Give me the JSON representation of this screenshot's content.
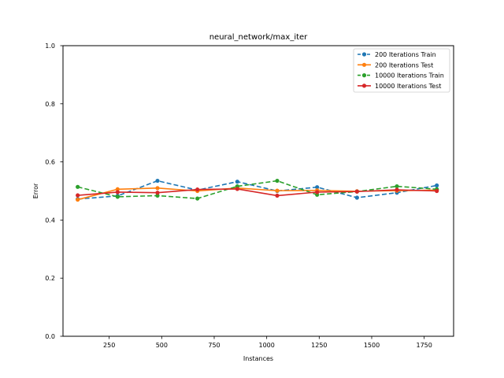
{
  "chart_data": {
    "type": "line",
    "title": "neural_network/max_iter",
    "xlabel": "Instances",
    "ylabel": "Error",
    "xlim": [
      30,
      1890
    ],
    "ylim": [
      0.0,
      1.0
    ],
    "xticks": [
      250,
      500,
      750,
      1000,
      1250,
      1500,
      1750
    ],
    "yticks": [
      0.0,
      0.2,
      0.4,
      0.6,
      0.8,
      1.0
    ],
    "xtick_labels": [
      "250",
      "500",
      "750",
      "1000",
      "1250",
      "1500",
      "1750"
    ],
    "ytick_labels": [
      "0.0",
      "0.2",
      "0.4",
      "0.6",
      "0.8",
      "1.0"
    ],
    "grid": false,
    "legend_position": "top-right",
    "x": [
      100,
      290,
      480,
      670,
      860,
      1050,
      1240,
      1430,
      1620,
      1810
    ],
    "series": [
      {
        "name": "200 Iterations Train",
        "color": "#1f77b4",
        "linestyle": "dashed",
        "values": [
          0.472,
          0.483,
          0.535,
          0.503,
          0.532,
          0.5,
          0.513,
          0.477,
          0.494,
          0.519
        ]
      },
      {
        "name": "200 Iterations Test",
        "color": "#ff7f0e",
        "linestyle": "solid",
        "values": [
          0.47,
          0.506,
          0.51,
          0.5,
          0.51,
          0.501,
          0.502,
          0.499,
          0.501,
          0.503
        ]
      },
      {
        "name": "10000 Iterations Train",
        "color": "#2ca02c",
        "linestyle": "dashed",
        "values": [
          0.514,
          0.48,
          0.484,
          0.474,
          0.516,
          0.535,
          0.487,
          0.498,
          0.516,
          0.506
        ]
      },
      {
        "name": "10000 Iterations Test",
        "color": "#d62728",
        "linestyle": "solid",
        "values": [
          0.485,
          0.496,
          0.494,
          0.505,
          0.507,
          0.484,
          0.496,
          0.498,
          0.504,
          0.5
        ]
      }
    ]
  }
}
